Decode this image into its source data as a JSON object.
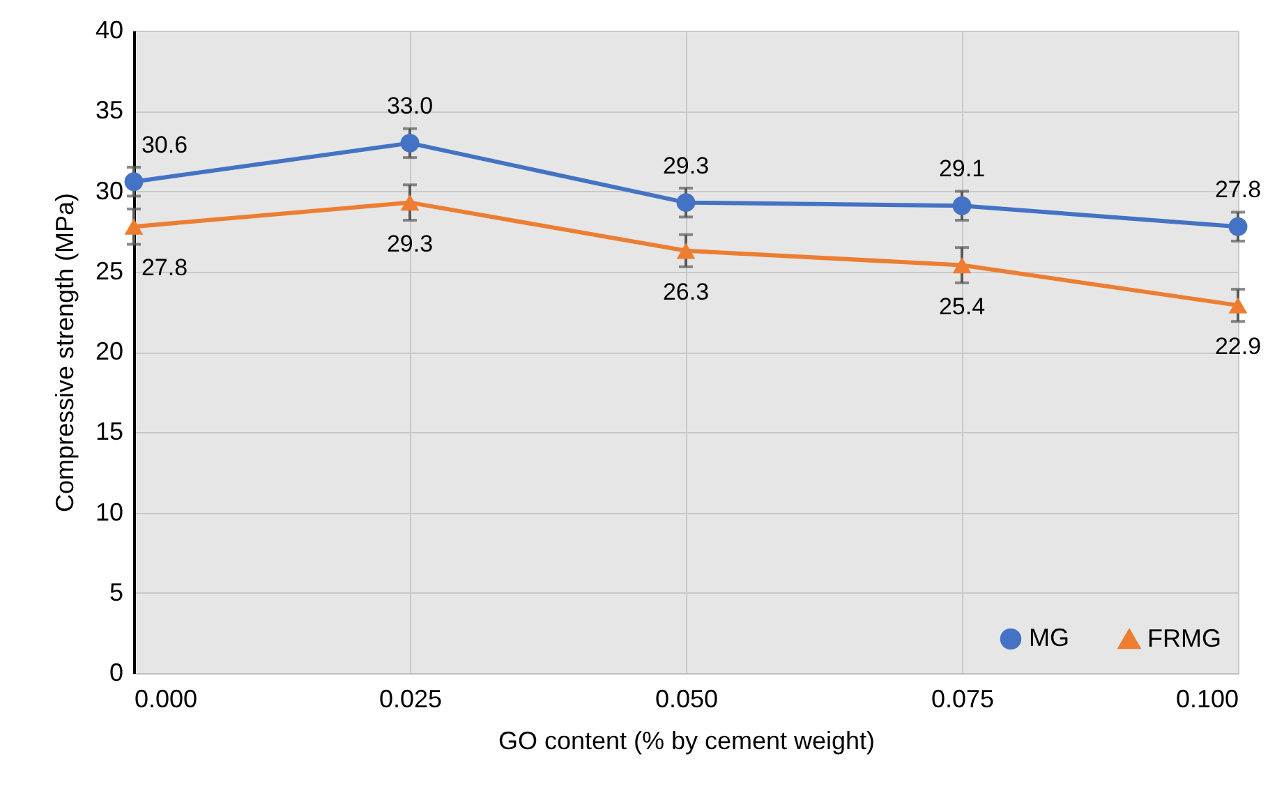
{
  "chart_data": {
    "type": "line",
    "xlabel": "GO content (% by cement weight)",
    "ylabel": "Compressive strength (MPa)",
    "x": [
      0,
      0.025,
      0.05,
      0.075,
      0.1
    ],
    "xlim": [
      0,
      0.1
    ],
    "xticks": [
      {
        "value": 0,
        "label": "0.000"
      },
      {
        "value": 0.025,
        "label": "0.025"
      },
      {
        "value": 0.05,
        "label": "0.050"
      },
      {
        "value": 0.075,
        "label": "0.075"
      },
      {
        "value": 0.1,
        "label": "0.100"
      }
    ],
    "ylim": [
      0,
      40
    ],
    "yticks": [
      0,
      5,
      10,
      15,
      20,
      25,
      30,
      35,
      40
    ],
    "grid": true,
    "legend": "bottom right",
    "series": [
      {
        "name": "MG",
        "color": "#4472c4",
        "marker": "circle",
        "values": [
          30.6,
          33.0,
          29.3,
          29.1,
          27.8
        ],
        "value_labels": [
          "30.6",
          "33.0",
          "29.3",
          "29.1",
          "27.8"
        ],
        "errors": [
          0.9,
          0.9,
          0.9,
          0.9,
          0.9
        ]
      },
      {
        "name": "FRMG",
        "color": "#ed7d31",
        "marker": "triangle",
        "values": [
          27.8,
          29.3,
          26.3,
          25.4,
          22.9
        ],
        "value_labels": [
          "27.8",
          "29.3",
          "26.3",
          "25.4",
          "22.9"
        ],
        "errors": [
          1.1,
          1.1,
          1.0,
          1.1,
          1.0
        ]
      }
    ]
  }
}
